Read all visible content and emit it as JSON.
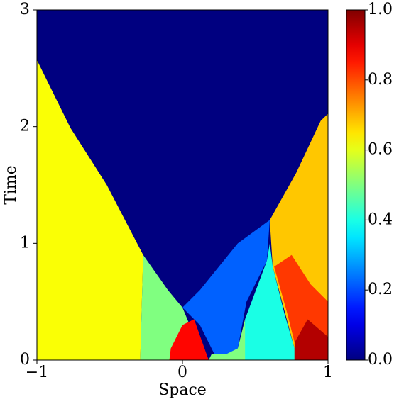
{
  "chart_data": {
    "type": "heatmap",
    "xlabel": "Space",
    "ylabel": "Time",
    "xlim": [
      -1,
      1
    ],
    "ylim": [
      0,
      3
    ],
    "xticks": [
      {
        "value": -1,
        "label": "−1"
      },
      0,
      1
    ],
    "yticks": [
      0,
      1,
      2,
      3
    ],
    "colormap": "jet",
    "clim": [
      0,
      1
    ],
    "cticks": [
      {
        "value": 0,
        "label": "0.0"
      },
      {
        "value": 0.2,
        "label": "0.2"
      },
      {
        "value": 0.4,
        "label": "0.4"
      },
      {
        "value": 0.6,
        "label": "0.6"
      },
      {
        "value": 0.8,
        "label": "0.8"
      },
      {
        "value": 1,
        "label": "1.0"
      }
    ],
    "background": 0,
    "regions": [
      {
        "value": 0.62,
        "points": [
          [
            -1,
            0
          ],
          [
            -1,
            2.57
          ],
          [
            -0.77,
            1.99
          ],
          [
            -0.52,
            1.5
          ],
          [
            -0.27,
            0.9
          ],
          [
            -0.29,
            0
          ]
        ]
      },
      {
        "value": 0.5,
        "points": [
          [
            -0.29,
            0
          ],
          [
            -0.27,
            0.9
          ],
          [
            -0.1,
            0.6
          ],
          [
            0.0,
            0.45
          ],
          [
            0.05,
            0.3
          ],
          [
            -0.08,
            0.05
          ],
          [
            -0.08,
            0
          ]
        ]
      },
      {
        "value": 0.22,
        "points": [
          [
            0.0,
            0.45
          ],
          [
            0.12,
            0.6
          ],
          [
            0.38,
            1.0
          ],
          [
            0.6,
            1.2
          ],
          [
            0.58,
            0.85
          ],
          [
            0.44,
            0.5
          ],
          [
            0.38,
            0.1
          ],
          [
            0.32,
            0.05
          ],
          [
            0.22,
            0.05
          ],
          [
            0.12,
            0.3
          ]
        ]
      },
      {
        "value": 0.87,
        "points": [
          [
            -0.09,
            0
          ],
          [
            -0.08,
            0.1
          ],
          [
            0.0,
            0.3
          ],
          [
            0.08,
            0.35
          ],
          [
            0.18,
            0
          ]
        ]
      },
      {
        "value": 0.5,
        "points": [
          [
            0.18,
            0
          ],
          [
            0.44,
            0
          ],
          [
            0.43,
            0.35
          ],
          [
            0.38,
            0.1
          ],
          [
            0.3,
            0.05
          ],
          [
            0.2,
            0.05
          ]
        ]
      },
      {
        "value": 0.4,
        "points": [
          [
            0.43,
            0
          ],
          [
            0.43,
            0.35
          ],
          [
            0.58,
            0.85
          ],
          [
            0.6,
            1.0
          ],
          [
            0.62,
            0.8
          ],
          [
            0.7,
            0.4
          ],
          [
            0.77,
            0.1
          ],
          [
            0.77,
            0
          ]
        ]
      },
      {
        "value": 0.68,
        "points": [
          [
            0.6,
            1.2
          ],
          [
            0.78,
            1.6
          ],
          [
            0.95,
            2.05
          ],
          [
            1,
            2.11
          ],
          [
            1,
            0
          ],
          [
            0.77,
            0
          ],
          [
            0.77,
            0.1
          ],
          [
            0.62,
            0.8
          ]
        ]
      },
      {
        "value": 0.82,
        "points": [
          [
            0.63,
            0.8
          ],
          [
            0.72,
            0.4
          ],
          [
            0.77,
            0.15
          ],
          [
            0.86,
            0.35
          ],
          [
            1,
            0.2
          ],
          [
            1,
            0.5
          ],
          [
            0.88,
            0.65
          ],
          [
            0.75,
            0.9
          ]
        ]
      },
      {
        "value": 0.95,
        "points": [
          [
            0.77,
            0
          ],
          [
            0.77,
            0.15
          ],
          [
            0.86,
            0.35
          ],
          [
            1,
            0.2
          ],
          [
            1,
            0
          ]
        ]
      }
    ]
  }
}
